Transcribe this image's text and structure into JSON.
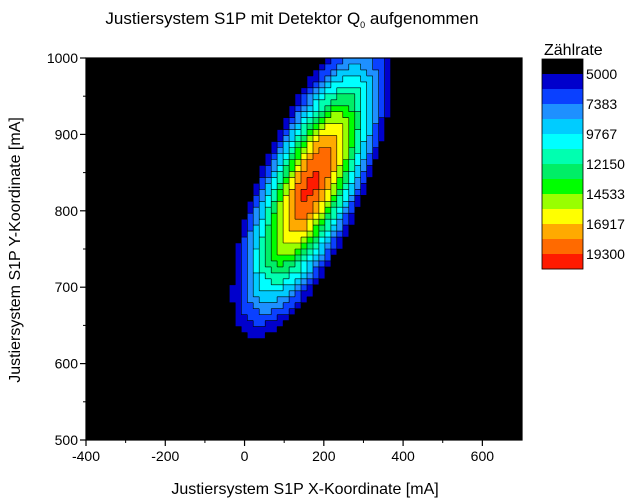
{
  "chart_data": {
    "type": "heatmap",
    "subtype": "filled-contour",
    "title_main": "Justiersystem S1P mit Detektor Q",
    "title_sub": "0",
    "title_rest": " aufgenommen",
    "xlabel": "Justiersystem S1P  X-Koordinate [mA]",
    "ylabel": "Justiersystem S1P  Y-Koordinate [mA]",
    "xlim": [
      -400,
      700
    ],
    "ylim": [
      500,
      1000
    ],
    "x_ticks": [
      "-400",
      "-200",
      "0",
      "200",
      "400",
      "600"
    ],
    "y_ticks": [
      "500",
      "600",
      "700",
      "800",
      "900",
      "1000"
    ],
    "legend_title": "Zählrate",
    "legend_labels": [
      "5000",
      "7383",
      "9767",
      "12150",
      "14533",
      "16917",
      "19300"
    ],
    "peak": {
      "x": 170,
      "y": 835,
      "value": 19600
    },
    "levels": [
      2617,
      5000,
      6192,
      7383,
      8575,
      9767,
      10958,
      12150,
      13342,
      14533,
      15725,
      16917,
      18108,
      19300
    ],
    "colors": [
      "#000000",
      "#0000cc",
      "#0a40ff",
      "#1e90ff",
      "#00ccff",
      "#00ffff",
      "#00ffb0",
      "#00ee66",
      "#00ff00",
      "#99ff00",
      "#ffff00",
      "#ffaa00",
      "#ff6a00",
      "#ff1a00"
    ]
  }
}
